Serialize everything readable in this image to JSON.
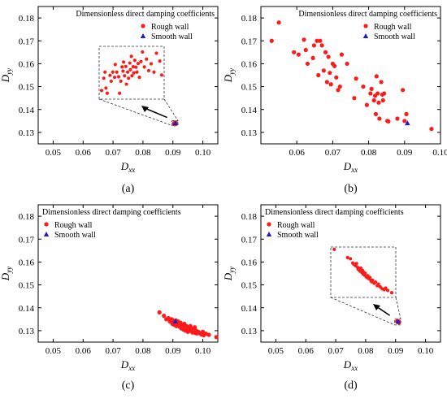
{
  "chart_data": [
    {
      "panel_label": "(a)",
      "type": "scatter",
      "xlabel_base": "D",
      "xlabel_sub": "xx",
      "ylabel_base": "D",
      "ylabel_sub": "yy",
      "xlim": [
        0.045,
        0.105
      ],
      "ylim": [
        0.125,
        0.185
      ],
      "xticks": [
        "0.05",
        "0.06",
        "0.07",
        "0.08",
        "0.09",
        "0.10"
      ],
      "yticks": [
        "0.13",
        "0.14",
        "0.15",
        "0.16",
        "0.17",
        "0.18"
      ],
      "legend_title": "Dimensionless direct damping coefficients",
      "legend_placement": "top-right",
      "series": [
        {
          "name": "Rough wall",
          "marker": "circle",
          "color": "#ff0000",
          "x": [
            0.0903,
            0.0905,
            0.0906,
            0.0907,
            0.0908,
            0.0909,
            0.091,
            0.0911
          ],
          "y": [
            0.1338,
            0.1341,
            0.1336,
            0.1343,
            0.1339,
            0.1337,
            0.1342,
            0.134
          ]
        },
        {
          "name": "Smooth wall",
          "marker": "triangle",
          "color": "#0000cc",
          "x": [
            0.0908
          ],
          "y": [
            0.134
          ]
        }
      ],
      "inset": {
        "zoom_region": {
          "x": [
            0.0897,
            0.0917
          ],
          "y": [
            0.133,
            0.1351
          ]
        },
        "points": [
          [
            0.0683,
            0.15
          ],
          [
            0.069,
            0.155
          ],
          [
            0.0694,
            0.1575
          ],
          [
            0.0697,
            0.151
          ],
          [
            0.0701,
            0.1489
          ],
          [
            0.071,
            0.1562
          ],
          [
            0.0714,
            0.1538
          ],
          [
            0.0719,
            0.1575
          ],
          [
            0.0725,
            0.1554
          ],
          [
            0.0727,
            0.1606
          ],
          [
            0.0732,
            0.1575
          ],
          [
            0.0738,
            0.1556
          ],
          [
            0.0741,
            0.1489
          ],
          [
            0.0745,
            0.1538
          ],
          [
            0.0749,
            0.1596
          ],
          [
            0.0752,
            0.1579
          ],
          [
            0.0754,
            0.1616
          ],
          [
            0.0757,
            0.156
          ],
          [
            0.0761,
            0.1598
          ],
          [
            0.0763,
            0.1526
          ],
          [
            0.0767,
            0.1575
          ],
          [
            0.077,
            0.155
          ],
          [
            0.0774,
            0.1612
          ],
          [
            0.0776,
            0.1585
          ],
          [
            0.0779,
            0.1639
          ],
          [
            0.0781,
            0.156
          ],
          [
            0.0785,
            0.1597
          ],
          [
            0.0787,
            0.1572
          ],
          [
            0.079,
            0.1623
          ],
          [
            0.0794,
            0.1595
          ],
          [
            0.0797,
            0.1575
          ],
          [
            0.0801,
            0.161
          ],
          [
            0.0805,
            0.1554
          ],
          [
            0.081,
            0.1618
          ],
          [
            0.0815,
            0.1657
          ],
          [
            0.0821,
            0.1596
          ],
          [
            0.0828,
            0.1628
          ],
          [
            0.0835,
            0.1581
          ],
          [
            0.0843,
            0.1609
          ],
          [
            0.0852,
            0.1575
          ],
          [
            0.086,
            0.1652
          ],
          [
            0.0871,
            0.162
          ],
          [
            0.0877,
            0.1563
          ]
        ]
      }
    },
    {
      "panel_label": "(b)",
      "type": "scatter",
      "xlabel_base": "D",
      "xlabel_sub": "xx",
      "ylabel_base": "D",
      "ylabel_sub": "yy",
      "xlim": [
        0.05,
        0.1
      ],
      "ylim": [
        0.125,
        0.185
      ],
      "xticks": [
        "0.06",
        "0.07",
        "0.08",
        "0.09",
        "0.10"
      ],
      "yticks": [
        "0.13",
        "0.14",
        "0.15",
        "0.16",
        "0.17",
        "0.18"
      ],
      "legend_title": "Dimensionless direct damping coefficients",
      "legend_placement": "top-right",
      "series": [
        {
          "name": "Rough wall",
          "marker": "circle",
          "color": "#ff0000",
          "x": [
            0.053,
            0.055,
            0.0592,
            0.0605,
            0.062,
            0.0625,
            0.063,
            0.0645,
            0.0648,
            0.0656,
            0.066,
            0.0665,
            0.067,
            0.0675,
            0.068,
            0.0684,
            0.0688,
            0.0692,
            0.0695,
            0.07,
            0.0705,
            0.071,
            0.0715,
            0.072,
            0.0725,
            0.074,
            0.076,
            0.0765,
            0.0785,
            0.0795,
            0.0805,
            0.0808,
            0.0815,
            0.0818,
            0.082,
            0.0822,
            0.0825,
            0.0828,
            0.083,
            0.0835,
            0.0838,
            0.084,
            0.0843,
            0.0852,
            0.0855,
            0.088,
            0.0895,
            0.09,
            0.0905,
            0.0975
          ],
          "y": [
            0.17,
            0.178,
            0.165,
            0.164,
            0.1705,
            0.166,
            0.16,
            0.1625,
            0.168,
            0.17,
            0.155,
            0.17,
            0.168,
            0.157,
            0.165,
            0.152,
            0.163,
            0.156,
            0.151,
            0.16,
            0.159,
            0.154,
            0.1485,
            0.15,
            0.164,
            0.16,
            0.145,
            0.1535,
            0.15,
            0.142,
            0.147,
            0.149,
            0.144,
            0.146,
            0.138,
            0.1545,
            0.147,
            0.143,
            0.136,
            0.152,
            0.1465,
            0.144,
            0.147,
            0.135,
            0.1348,
            0.136,
            0.1485,
            0.135,
            0.138,
            0.1315
          ]
        },
        {
          "name": "Smooth wall",
          "marker": "triangle",
          "color": "#0000cc",
          "x": [
            0.0908
          ],
          "y": [
            0.134
          ]
        }
      ]
    },
    {
      "panel_label": "(c)",
      "type": "scatter",
      "xlabel_base": "D",
      "xlabel_sub": "xx",
      "ylabel_base": "D",
      "ylabel_sub": "yy",
      "xlim": [
        0.045,
        0.105
      ],
      "ylim": [
        0.125,
        0.185
      ],
      "xticks": [
        "0.05",
        "0.06",
        "0.07",
        "0.08",
        "0.09",
        "0.10"
      ],
      "yticks": [
        "0.13",
        "0.14",
        "0.15",
        "0.16",
        "0.17",
        "0.18"
      ],
      "legend_title": "Dimensionless direct damping coefficients",
      "legend_placement": "top-left",
      "series": [
        {
          "name": "Rough wall",
          "marker": "circle",
          "color": "#ff0000",
          "x": [
            0.0855,
            0.087,
            0.0878,
            0.0885,
            0.089,
            0.0895,
            0.0898,
            0.09,
            0.0903,
            0.0905,
            0.0908,
            0.091,
            0.0912,
            0.0915,
            0.0917,
            0.092,
            0.0922,
            0.0925,
            0.0928,
            0.093,
            0.0932,
            0.0935,
            0.0938,
            0.094,
            0.0942,
            0.0945,
            0.0948,
            0.095,
            0.0953,
            0.0955,
            0.0958,
            0.096,
            0.0963,
            0.0965,
            0.0968,
            0.097,
            0.0973,
            0.0975,
            0.0978,
            0.098,
            0.0985,
            0.099,
            0.0995,
            0.1,
            0.1003,
            0.101,
            0.102,
            0.1045
          ],
          "y": [
            0.138,
            0.1365,
            0.135,
            0.1355,
            0.134,
            0.135,
            0.133,
            0.1345,
            0.1335,
            0.1325,
            0.1338,
            0.1345,
            0.132,
            0.133,
            0.134,
            0.1325,
            0.1318,
            0.1335,
            0.131,
            0.1325,
            0.132,
            0.1305,
            0.133,
            0.1315,
            0.13,
            0.132,
            0.131,
            0.1295,
            0.1315,
            0.1305,
            0.132,
            0.13,
            0.131,
            0.1292,
            0.1305,
            0.13,
            0.1315,
            0.129,
            0.13,
            0.1288,
            0.1295,
            0.129,
            0.1283,
            0.1295,
            0.128,
            0.1287,
            0.1282,
            0.1272
          ]
        },
        {
          "name": "Smooth wall",
          "marker": "triangle",
          "color": "#0000cc",
          "x": [
            0.0908
          ],
          "y": [
            0.134
          ]
        }
      ]
    },
    {
      "panel_label": "(d)",
      "type": "scatter",
      "xlabel_base": "D",
      "xlabel_sub": "xx",
      "ylabel_base": "D",
      "ylabel_sub": "yy",
      "xlim": [
        0.045,
        0.105
      ],
      "ylim": [
        0.125,
        0.185
      ],
      "xticks": [
        "0.05",
        "0.06",
        "0.07",
        "0.08",
        "0.09",
        "0.10"
      ],
      "yticks": [
        "0.13",
        "0.14",
        "0.15",
        "0.16",
        "0.17",
        "0.18"
      ],
      "legend_title": "Dimensionless direct damping coefficients",
      "legend_placement": "top-left",
      "series": [
        {
          "name": "Rough wall",
          "marker": "circle",
          "color": "#ff0000",
          "x": [
            0.0905,
            0.0906,
            0.0907,
            0.0908,
            0.0909,
            0.091,
            0.0911,
            0.0912
          ],
          "y": [
            0.1342,
            0.1339,
            0.1341,
            0.1337,
            0.134,
            0.1338,
            0.1336,
            0.1339
          ]
        },
        {
          "name": "Smooth wall",
          "marker": "triangle",
          "color": "#0000cc",
          "x": [
            0.0908
          ],
          "y": [
            0.134
          ]
        }
      ],
      "inset": {
        "zoom_region": {
          "x": [
            0.0897,
            0.0917
          ],
          "y": [
            0.1325,
            0.1352
          ]
        },
        "points": [
          [
            0.0677,
            0.166
          ],
          [
            0.0723,
            0.1625
          ],
          [
            0.0733,
            0.162
          ],
          [
            0.0741,
            0.1602
          ],
          [
            0.0745,
            0.1596
          ],
          [
            0.0751,
            0.159
          ],
          [
            0.0754,
            0.16
          ],
          [
            0.0758,
            0.1583
          ],
          [
            0.076,
            0.1575
          ],
          [
            0.0763,
            0.158
          ],
          [
            0.0766,
            0.1567
          ],
          [
            0.0769,
            0.158
          ],
          [
            0.0772,
            0.1562
          ],
          [
            0.0775,
            0.157
          ],
          [
            0.0777,
            0.1555
          ],
          [
            0.0779,
            0.1562
          ],
          [
            0.0782,
            0.155
          ],
          [
            0.0784,
            0.1558
          ],
          [
            0.0787,
            0.1545
          ],
          [
            0.079,
            0.154
          ],
          [
            0.0793,
            0.1548
          ],
          [
            0.0797,
            0.1535
          ],
          [
            0.08,
            0.154
          ],
          [
            0.0803,
            0.153
          ],
          [
            0.0806,
            0.1522
          ],
          [
            0.081,
            0.1528
          ],
          [
            0.0815,
            0.1515
          ],
          [
            0.082,
            0.152
          ],
          [
            0.0826,
            0.1505
          ],
          [
            0.083,
            0.1512
          ],
          [
            0.0836,
            0.15
          ],
          [
            0.0843,
            0.1492
          ],
          [
            0.085,
            0.1488
          ],
          [
            0.0855,
            0.1495
          ],
          [
            0.0862,
            0.1485
          ],
          [
            0.0876,
            0.1475
          ]
        ]
      }
    }
  ]
}
